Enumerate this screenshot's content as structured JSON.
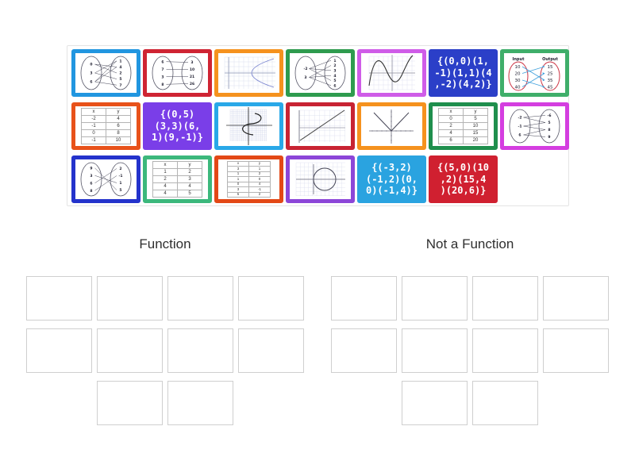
{
  "page": {
    "background": "#ffffff"
  },
  "groups": [
    {
      "label": "Function",
      "slot_layout": [
        4,
        4,
        2
      ]
    },
    {
      "label": "Not a Function",
      "slot_layout": [
        4,
        4,
        2
      ]
    }
  ],
  "tray": {
    "tiles": [
      {
        "row": 1,
        "type": "mapping",
        "desc": "mapping diagram with crossing arrows",
        "border": "#2196e0",
        "left": [
          "0",
          "3",
          "6"
        ],
        "right": [
          "1",
          "4",
          "2",
          "5",
          "7"
        ],
        "links": [
          [
            0,
            1
          ],
          [
            0,
            2
          ],
          [
            1,
            0
          ],
          [
            1,
            3
          ],
          [
            2,
            1
          ],
          [
            2,
            4
          ],
          [
            2,
            0
          ]
        ]
      },
      {
        "row": 1,
        "type": "mapping",
        "desc": "mapping diagram with parallel arrows",
        "border": "#cf2433",
        "left": [
          "6",
          "7",
          "3",
          "8"
        ],
        "right": [
          "3",
          "10",
          "21",
          "26"
        ],
        "links": [
          [
            0,
            0
          ],
          [
            1,
            1
          ],
          [
            2,
            2
          ],
          [
            3,
            3
          ]
        ]
      },
      {
        "row": 1,
        "type": "graph",
        "desc": "sideways parabola opening right",
        "border": "#f5921e",
        "curve": "parabola-right"
      },
      {
        "row": 1,
        "type": "mapping",
        "desc": "mapping diagram one input to many outputs",
        "border": "#2e9b4e",
        "left": [
          "-2",
          "3"
        ],
        "right": [
          "1",
          "2",
          "3",
          "4",
          "5",
          "6"
        ],
        "links": [
          [
            0,
            0
          ],
          [
            0,
            2
          ],
          [
            0,
            4
          ],
          [
            1,
            1
          ],
          [
            1,
            3
          ],
          [
            1,
            5
          ]
        ]
      },
      {
        "row": 1,
        "type": "graph",
        "desc": "cubic curve",
        "border": "#cf5ce8",
        "curve": "cubic"
      },
      {
        "row": 1,
        "type": "pairs",
        "desc": "set of ordered pairs",
        "bg": "#2b3fc8",
        "lines": [
          "{(0,0)(1,",
          "-1)(1,1)(4",
          ",-2)(4,2)}"
        ]
      },
      {
        "row": 1,
        "type": "io",
        "desc": "input output mapping",
        "border": "#3fae6a",
        "header_left": "Input",
        "header_right": "Output",
        "left": [
          "10",
          "20",
          "30",
          "40"
        ],
        "right": [
          "15",
          "25",
          "35",
          "45"
        ],
        "links": [
          [
            0,
            2
          ],
          [
            1,
            0
          ],
          [
            2,
            3
          ],
          [
            3,
            1
          ]
        ]
      },
      {
        "row": 2,
        "type": "table",
        "desc": "x y table with repeated x",
        "border": "#e8521a",
        "headers": [
          "x",
          "y"
        ],
        "rows": [
          [
            "-2",
            "4"
          ],
          [
            "-1",
            "6"
          ],
          [
            "0",
            "8"
          ],
          [
            "-1",
            "10"
          ]
        ]
      },
      {
        "row": 2,
        "type": "pairs",
        "desc": "set of ordered pairs",
        "bg": "#7a3ee8",
        "lines": [
          "{(0,5)",
          "(3,3)(6,",
          "1)(9,-1)}"
        ]
      },
      {
        "row": 2,
        "type": "graph",
        "desc": "sideways S curve on graph paper",
        "border": "#29a8e8",
        "curve": "s-curve"
      },
      {
        "row": 2,
        "type": "graph",
        "desc": "straight diagonal line",
        "border": "#c82333",
        "curve": "line"
      },
      {
        "row": 2,
        "type": "graph",
        "desc": "absolute value V graph",
        "border": "#f5921e",
        "curve": "absolute"
      },
      {
        "row": 2,
        "type": "table",
        "desc": "x y table",
        "border": "#1f8f4d",
        "headers": [
          "x",
          "y"
        ],
        "rows": [
          [
            "0",
            "5"
          ],
          [
            "2",
            "10"
          ],
          [
            "4",
            "15"
          ],
          [
            "6",
            "20"
          ]
        ]
      },
      {
        "row": 2,
        "type": "mapping",
        "desc": "mapping diagram",
        "border": "#d43ee0",
        "left": [
          "-2",
          "-1",
          "6"
        ],
        "right": [
          "-6",
          "5",
          "8",
          "9"
        ],
        "links": [
          [
            0,
            0
          ],
          [
            0,
            1
          ],
          [
            1,
            1
          ],
          [
            1,
            2
          ],
          [
            2,
            2
          ],
          [
            2,
            3
          ]
        ]
      },
      {
        "row": 3,
        "type": "mapping",
        "desc": "mapping diagram with crossing arrows",
        "border": "#2433cc",
        "left": [
          "9",
          "3",
          "6",
          "8"
        ],
        "right": [
          "2",
          "-1",
          "1",
          "5"
        ],
        "links": [
          [
            0,
            3
          ],
          [
            1,
            2
          ],
          [
            2,
            0
          ],
          [
            3,
            1
          ]
        ]
      },
      {
        "row": 3,
        "type": "table",
        "desc": "x y table with repeated x",
        "border": "#3cb87c",
        "headers": [
          "x",
          "y"
        ],
        "rows": [
          [
            "1",
            "2"
          ],
          [
            "2",
            "3"
          ],
          [
            "4",
            "4"
          ],
          [
            "4",
            "5"
          ]
        ]
      },
      {
        "row": 3,
        "type": "table",
        "desc": "six row x y table",
        "border": "#e34816",
        "headers": [
          "x",
          "y"
        ],
        "rows": [
          [
            "3",
            "1"
          ],
          [
            "1",
            "2"
          ],
          [
            "1",
            "0"
          ],
          [
            "0",
            "4"
          ],
          [
            "3",
            "-1"
          ],
          [
            "5",
            "2"
          ]
        ]
      },
      {
        "row": 3,
        "type": "graph",
        "desc": "circle on grid",
        "border": "#8c46d8",
        "curve": "circle"
      },
      {
        "row": 3,
        "type": "pairs",
        "desc": "set of ordered pairs",
        "bg": "#2aa3e0",
        "lines": [
          "{(-3,2)",
          "(-1,2)(0,",
          "0)(-1,4)}"
        ]
      },
      {
        "row": 3,
        "type": "pairs",
        "desc": "set of ordered pairs",
        "bg": "#d02030",
        "lines": [
          "{(5,0)(10",
          ",2)(15,4",
          ")(20,6)}"
        ]
      }
    ]
  }
}
